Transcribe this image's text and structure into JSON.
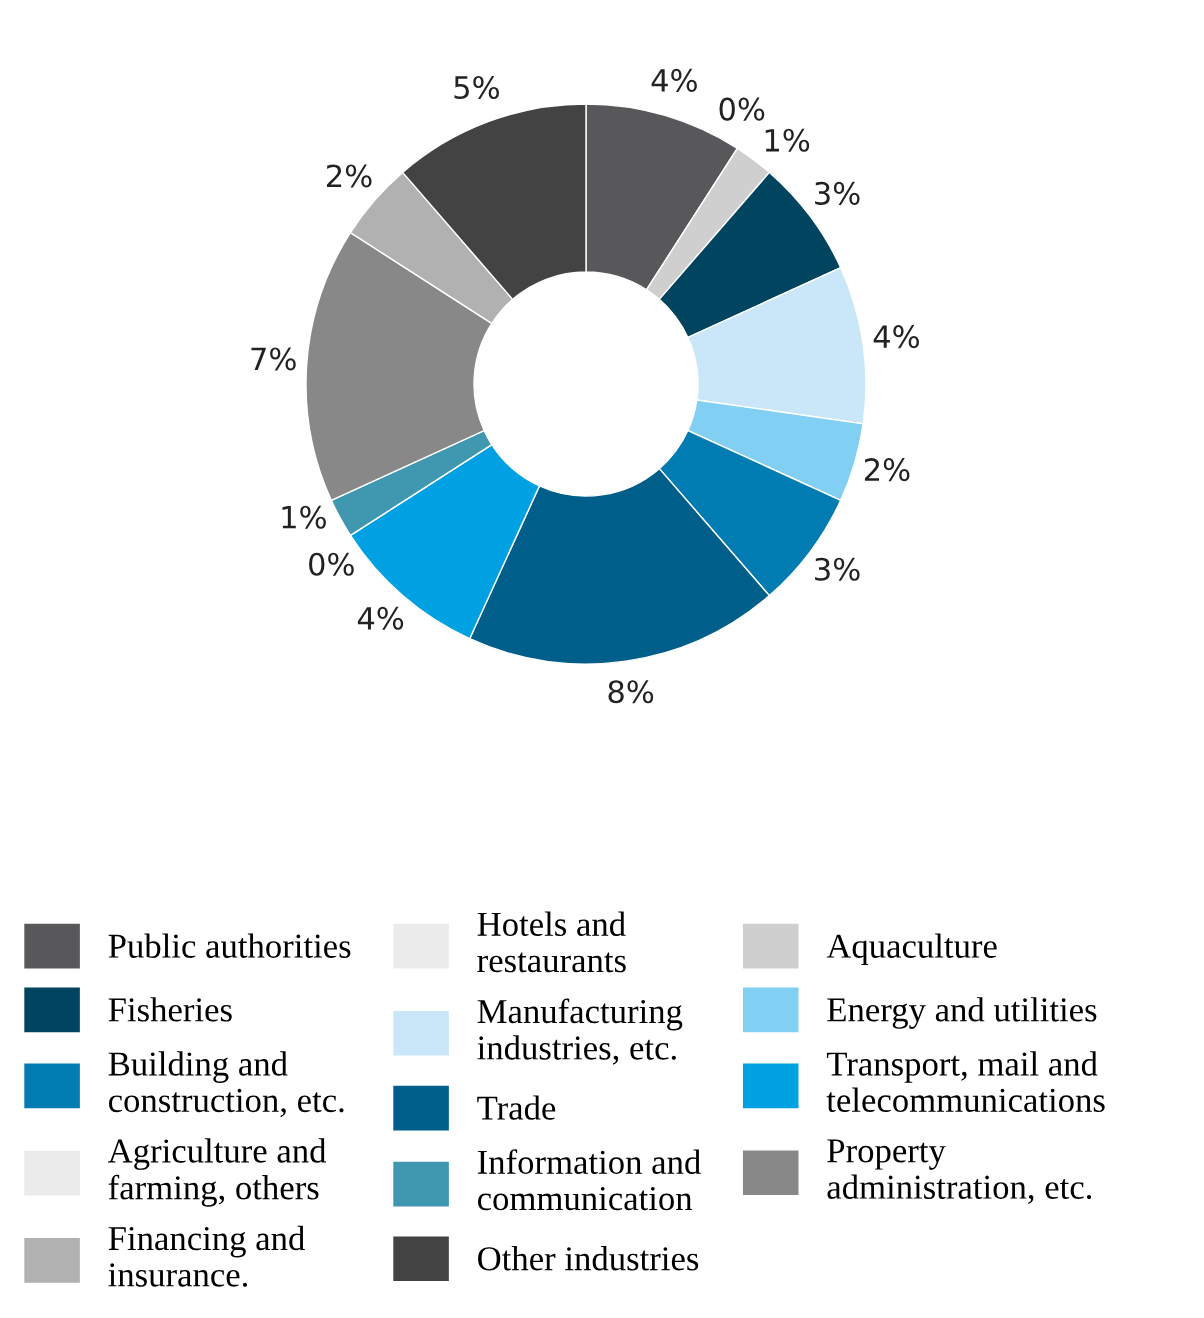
{
  "chart_data": {
    "type": "donut",
    "categories": [
      "Public authorities",
      "Hotels and\nrestaurants",
      "Aquaculture",
      "Fisheries",
      "Manufacturing\nindustries, etc.",
      "Energy and utilities",
      "Building and\nconstruction, etc.",
      "Trade",
      "Transport, mail and\ntelecommunications",
      "Agriculture and\nfarming, others",
      "Information and\ncommunication",
      "Property\nadministration, etc.",
      "Financing and\ninsurance.",
      "Other industries"
    ],
    "values": [
      4,
      0,
      1,
      3,
      4,
      2,
      3,
      8,
      4,
      0,
      1,
      7,
      2,
      5
    ],
    "colors": [
      "#58585a",
      "#ebebeb",
      "#cfcfcf",
      "#00445f",
      "#c9e7f8",
      "#82cff4",
      "#007cb2",
      "#005f8a",
      "#00a1e2",
      "#ebebeb",
      "#3f97b0",
      "#888888",
      "#b1b1b1",
      "#434343"
    ],
    "value_labels": [
      "4%",
      "0%",
      "1%",
      "3%",
      "4%",
      "2%",
      "3%",
      "8%",
      "4%",
      "0%",
      "1%",
      "7%",
      "2%",
      "5%"
    ],
    "legend": "bottom"
  }
}
